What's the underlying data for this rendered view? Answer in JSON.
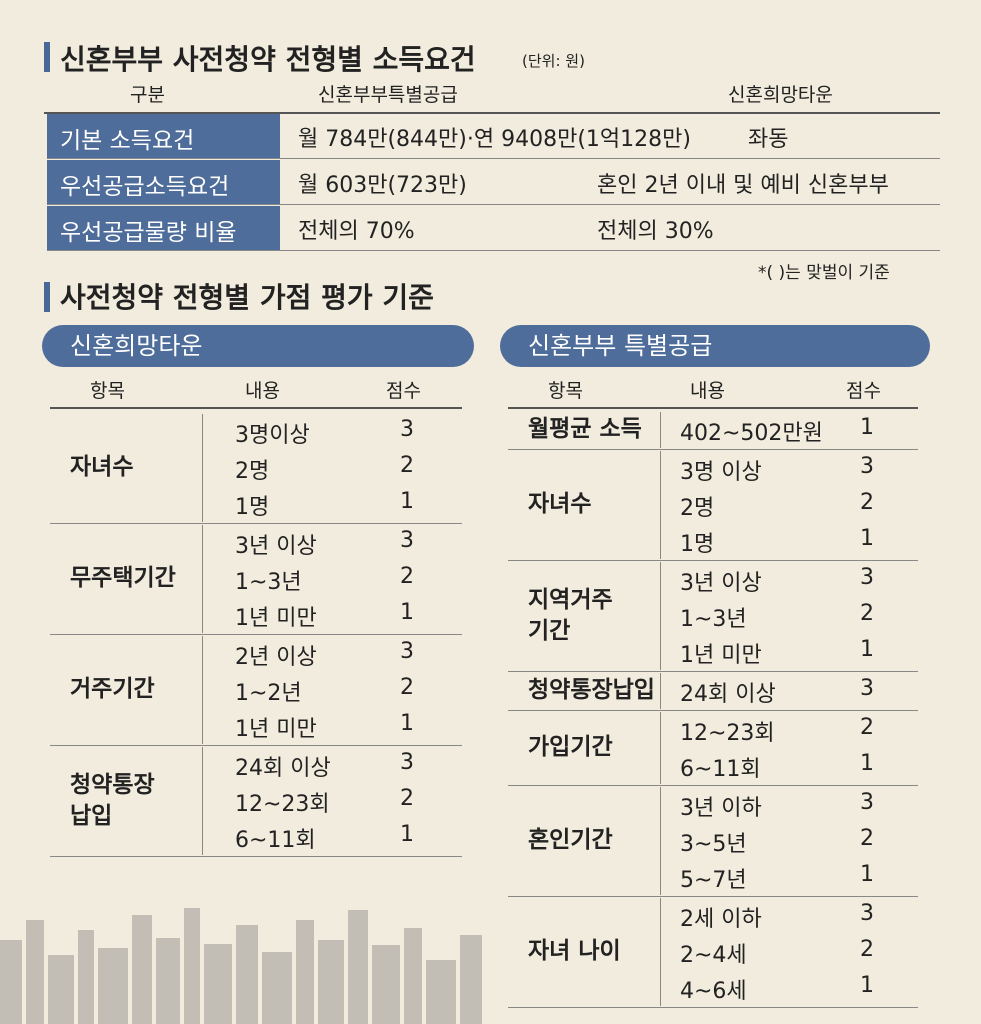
{
  "section1": {
    "title": "신혼부부 사전청약 전형별 소득요건",
    "unit": "(단위: 원)",
    "table": {
      "header": [
        "구분",
        "신혼부부특별공급",
        "신혼희망타운"
      ],
      "rows": [
        [
          "기본 소득요건",
          "월 784만(844만)·연 9408만(1억128만)",
          "좌동"
        ],
        [
          "우선공급소득요건",
          "월 603만(723만)",
          "혼인 2년 이내 및 예비 신혼부부"
        ],
        [
          "우선공급물량 비율",
          "전체의 70%",
          "전체의 30%"
        ]
      ]
    },
    "note": "*(     )는 맞벌이 기준"
  },
  "section2": {
    "title": "사전청약 전형별 가점 평가 기준",
    "left": {
      "title": "신혼희망타운",
      "header": [
        "항목",
        "내용",
        "점수"
      ],
      "groups": [
        {
          "item": "자녀수",
          "rows": [
            [
              "3명이상",
              "3"
            ],
            [
              "2명",
              "2"
            ],
            [
              "1명",
              "1"
            ]
          ]
        },
        {
          "item": "무주택기간",
          "rows": [
            [
              "3년 이상",
              "3"
            ],
            [
              "1~3년",
              "2"
            ],
            [
              "1년 미만",
              "1"
            ]
          ]
        },
        {
          "item": "거주기간",
          "rows": [
            [
              "2년 이상",
              "3"
            ],
            [
              "1~2년",
              "2"
            ],
            [
              "1년 미만",
              "1"
            ]
          ]
        },
        {
          "item": "청약통장 납입",
          "rows": [
            [
              "24회 이상",
              "3"
            ],
            [
              "12~23회",
              "2"
            ],
            [
              "6~11회",
              "1"
            ]
          ]
        }
      ]
    },
    "right": {
      "title": "신혼부부 특별공급",
      "header": [
        "항목",
        "내용",
        "점수"
      ],
      "groups": [
        {
          "item": "월평균 소득",
          "rows": [
            [
              "402~502만원",
              "1"
            ]
          ]
        },
        {
          "item": "자녀수",
          "rows": [
            [
              "3명 이상",
              "3"
            ],
            [
              "2명",
              "2"
            ],
            [
              "1명",
              "1"
            ]
          ]
        },
        {
          "item": "지역거주 기간",
          "rows": [
            [
              "3년 이상",
              "3"
            ],
            [
              "1~3년",
              "2"
            ],
            [
              "1년 미만",
              "1"
            ]
          ]
        },
        {
          "item": "청약통장납입",
          "rows": [
            [
              "24회 이상",
              "3"
            ]
          ]
        },
        {
          "item": "가입기간",
          "rows": [
            [
              "12~23회",
              "2"
            ],
            [
              "6~11회",
              "1"
            ]
          ]
        },
        {
          "item": "혼인기간",
          "rows": [
            [
              "3년 이하",
              "3"
            ],
            [
              "3~5년",
              "2"
            ],
            [
              "5~7년",
              "1"
            ]
          ]
        },
        {
          "item": "자녀 나이",
          "rows": [
            [
              "2세 이하",
              "3"
            ],
            [
              "2~4세",
              "2"
            ],
            [
              "4~6세",
              "1"
            ]
          ]
        }
      ]
    }
  }
}
